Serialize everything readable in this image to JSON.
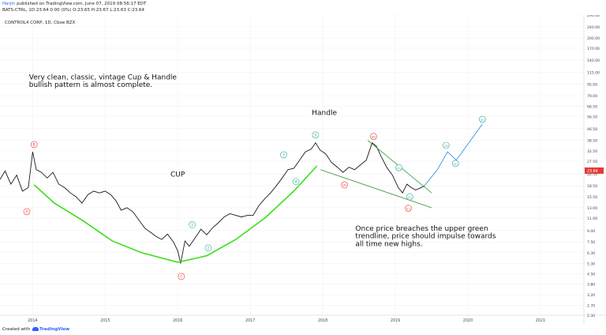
{
  "header": {
    "username": "Harjin",
    "publish_text": "published on TradingView.com, June 07, 2019 08:56:17 EDT",
    "quote_line": "BATS:CTRL, 1D  23.64 0.00 (0%) O:23.65 H:23.67 L:23.63 C:23.64"
  },
  "footer": {
    "created_text": "Created with",
    "brand": "TradingView"
  },
  "chart_data": {
    "type": "line",
    "symbol_label": "CONTROL4 CORP, 1D, Cboe BZX",
    "y_scale": "log",
    "ylim": [
      2.3,
      290
    ],
    "x_range": [
      "2013-07",
      "2021-08"
    ],
    "y_ticks": [
      "290.00",
      "240.00",
      "200.00",
      "170.00",
      "140.00",
      "115.00",
      "95.00",
      "79.00",
      "66.50",
      "56.50",
      "46.50",
      "38.50",
      "32.50",
      "27.50",
      "22.50",
      "18.50",
      "15.50",
      "13.00",
      "11.00",
      "9.00",
      "7.50",
      "6.30",
      "5.30",
      "4.50",
      "3.80",
      "3.20",
      "2.70",
      "2.30"
    ],
    "x_ticks": [
      {
        "label": "2014",
        "date": 2014.0
      },
      {
        "label": "2015",
        "date": 2015.0
      },
      {
        "label": "2016",
        "date": 2016.0
      },
      {
        "label": "2017",
        "date": 2017.0
      },
      {
        "label": "2018",
        "date": 2018.0
      },
      {
        "label": "2019",
        "date": 2019.0
      },
      {
        "label": "2020",
        "date": 2020.0
      },
      {
        "label": "2021",
        "date": 2021.0
      }
    ],
    "price_series": {
      "name": "CTRL",
      "points": [
        [
          2013.55,
          20.5
        ],
        [
          2013.62,
          23.5
        ],
        [
          2013.7,
          19
        ],
        [
          2013.78,
          22
        ],
        [
          2013.86,
          17
        ],
        [
          2013.94,
          18
        ],
        [
          2014.0,
          32
        ],
        [
          2014.05,
          24
        ],
        [
          2014.12,
          23
        ],
        [
          2014.2,
          21
        ],
        [
          2014.28,
          23
        ],
        [
          2014.36,
          19
        ],
        [
          2014.44,
          18
        ],
        [
          2014.52,
          16.5
        ],
        [
          2014.6,
          15.5
        ],
        [
          2014.68,
          14
        ],
        [
          2014.76,
          16
        ],
        [
          2014.84,
          17
        ],
        [
          2014.92,
          16.5
        ],
        [
          2015.0,
          17
        ],
        [
          2015.08,
          16
        ],
        [
          2015.15,
          14.5
        ],
        [
          2015.22,
          12.5
        ],
        [
          2015.3,
          13
        ],
        [
          2015.38,
          12.2
        ],
        [
          2015.55,
          9.3
        ],
        [
          2015.62,
          8.8
        ],
        [
          2015.7,
          8.2
        ],
        [
          2015.78,
          7.8
        ],
        [
          2015.86,
          8.5
        ],
        [
          2015.94,
          7.5
        ],
        [
          2016.0,
          6.5
        ],
        [
          2016.04,
          5.3
        ],
        [
          2016.1,
          7.6
        ],
        [
          2016.16,
          7
        ],
        [
          2016.24,
          8
        ],
        [
          2016.32,
          9.2
        ],
        [
          2016.4,
          8.4
        ],
        [
          2016.48,
          9.4
        ],
        [
          2016.56,
          10.2
        ],
        [
          2016.64,
          11.2
        ],
        [
          2016.72,
          11.8
        ],
        [
          2016.8,
          11.5
        ],
        [
          2016.88,
          11.2
        ],
        [
          2016.96,
          11.5
        ],
        [
          2017.04,
          11.5
        ],
        [
          2017.12,
          13.5
        ],
        [
          2017.2,
          15
        ],
        [
          2017.28,
          16.5
        ],
        [
          2017.36,
          18.5
        ],
        [
          2017.44,
          21
        ],
        [
          2017.52,
          24
        ],
        [
          2017.6,
          24.5
        ],
        [
          2017.68,
          28
        ],
        [
          2017.76,
          32
        ],
        [
          2017.84,
          33.5
        ],
        [
          2017.9,
          37
        ],
        [
          2017.96,
          33
        ],
        [
          2018.04,
          31
        ],
        [
          2018.12,
          27
        ],
        [
          2018.2,
          25
        ],
        [
          2018.28,
          23
        ],
        [
          2018.36,
          25
        ],
        [
          2018.44,
          24
        ],
        [
          2018.52,
          26
        ],
        [
          2018.6,
          28
        ],
        [
          2018.68,
          37
        ],
        [
          2018.74,
          35
        ],
        [
          2018.8,
          30
        ],
        [
          2018.88,
          25
        ],
        [
          2018.96,
          22
        ],
        [
          2019.04,
          18
        ],
        [
          2019.1,
          16.5
        ],
        [
          2019.16,
          19
        ],
        [
          2019.22,
          18
        ],
        [
          2019.28,
          17.3
        ],
        [
          2019.34,
          17.8
        ],
        [
          2019.4,
          18.5
        ]
      ]
    },
    "cup_curve": {
      "name": "Cup",
      "points": [
        [
          2014.02,
          18.8
        ],
        [
          2014.3,
          14
        ],
        [
          2014.7,
          10.5
        ],
        [
          2015.1,
          7.6
        ],
        [
          2015.5,
          6.3
        ],
        [
          2016.0,
          5.4
        ],
        [
          2016.4,
          6
        ],
        [
          2016.8,
          7.8
        ],
        [
          2017.2,
          11
        ],
        [
          2017.6,
          17
        ],
        [
          2017.92,
          25.5
        ]
      ]
    },
    "handle_lines": [
      {
        "name": "upper-trendline",
        "points": [
          [
            2018.62,
            38.5
          ],
          [
            2019.5,
            16.5
          ]
        ]
      },
      {
        "name": "lower-trendline",
        "points": [
          [
            2017.97,
            24
          ],
          [
            2019.5,
            13
          ]
        ]
      }
    ],
    "projection": {
      "name": "Projected path",
      "points": [
        [
          2019.4,
          18.5
        ],
        [
          2019.58,
          24
        ],
        [
          2019.72,
          32
        ],
        [
          2019.84,
          28
        ],
        [
          2020.2,
          50
        ]
      ]
    },
    "wave_labels": [
      {
        "text": "B",
        "x": 2014.02,
        "y": 36,
        "color": "#e53935"
      },
      {
        "text": "A",
        "x": 2013.92,
        "y": 12.2,
        "color": "#e53935"
      },
      {
        "text": "C",
        "x": 2016.05,
        "y": 4.3,
        "color": "#e53935"
      },
      {
        "text": "1",
        "x": 2016.2,
        "y": 9.9,
        "color": "#26a69a"
      },
      {
        "text": "2",
        "x": 2016.42,
        "y": 6.8,
        "color": "#26a69a"
      },
      {
        "text": "3",
        "x": 2017.46,
        "y": 30.5,
        "color": "#26a69a"
      },
      {
        "text": "4",
        "x": 2017.63,
        "y": 19.8,
        "color": "#26a69a"
      },
      {
        "text": "5",
        "x": 2017.9,
        "y": 42,
        "color": "#26a69a"
      },
      {
        "text": "(B)",
        "x": 2018.7,
        "y": 41,
        "color": "#e53935"
      },
      {
        "text": "(A)",
        "x": 2018.3,
        "y": 18.8,
        "color": "#e53935"
      },
      {
        "text": "(C)",
        "x": 2019.18,
        "y": 12.9,
        "color": "#e53935"
      },
      {
        "text": "(1)",
        "x": 2019.05,
        "y": 24.8,
        "color": "#26a69a"
      },
      {
        "text": "(2)",
        "x": 2019.2,
        "y": 15.5,
        "color": "#26a69a"
      },
      {
        "text": "(3)",
        "x": 2019.7,
        "y": 35.5,
        "color": "#26a69a"
      },
      {
        "text": "(4)",
        "x": 2019.83,
        "y": 26.5,
        "color": "#26a69a"
      },
      {
        "text": "(5)",
        "x": 2020.2,
        "y": 54,
        "color": "#26a69a"
      }
    ],
    "annotations": [
      {
        "text": "Very clean, classic, vintage Cup & Handle",
        "x": 2013.95,
        "y": 103
      },
      {
        "text": "bullish pattern is almost complete.",
        "x": 2013.95,
        "y": 91
      },
      {
        "text": "Handle",
        "x": 2017.85,
        "y": 58
      },
      {
        "text": "CUP",
        "x": 2015.9,
        "y": 21.5
      },
      {
        "text": "Once price breaches the upper green",
        "x": 2018.45,
        "y": 9.0
      },
      {
        "text": "trendline, price should impulse towards",
        "x": 2018.45,
        "y": 7.95
      },
      {
        "text": "all time new highs.",
        "x": 2018.45,
        "y": 7.0
      }
    ],
    "last_price": "23.64",
    "colors": {
      "price": "#1a1a1a",
      "cup": "#3bde1b",
      "trend": "#43a047",
      "projection": "#1e88e5",
      "last_price_bg": "#e53935",
      "axis_text": "#444444"
    }
  }
}
